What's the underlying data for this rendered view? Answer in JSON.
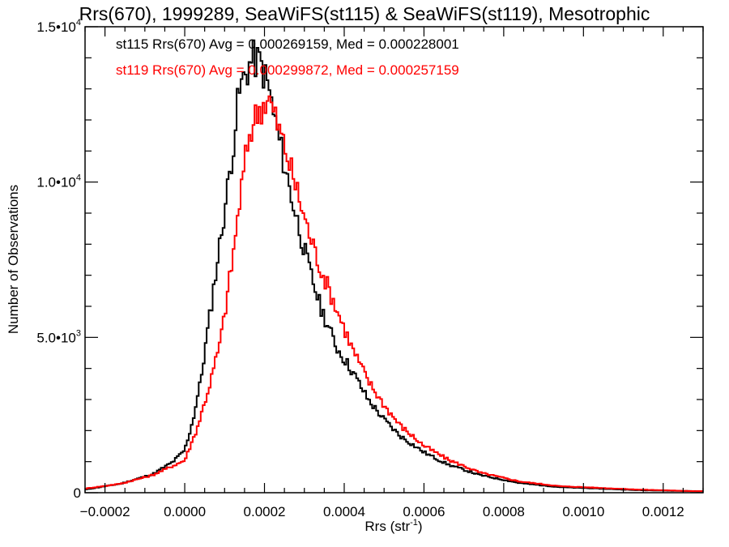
{
  "chart_data": {
    "type": "histogram",
    "title": "Rrs(670), 1999289, SeaWiFS(st115) & SeaWiFS(st119), Mesotrophic",
    "xlabel": "Rrs (str",
    "xlabel_superscript": "-1",
    "xlabel_suffix": ")",
    "ylabel": "Number of Observations",
    "xlim": [
      -0.00025,
      0.0013
    ],
    "ylim": [
      0,
      15000
    ],
    "grid": false,
    "x_ticks": [
      {
        "value": -0.0002,
        "label": "−0.0002"
      },
      {
        "value": 0.0,
        "label": "0.0000"
      },
      {
        "value": 0.0002,
        "label": "0.0002"
      },
      {
        "value": 0.0004,
        "label": "0.0004"
      },
      {
        "value": 0.0006,
        "label": "0.0006"
      },
      {
        "value": 0.0008,
        "label": "0.0008"
      },
      {
        "value": 0.001,
        "label": "0.0010"
      },
      {
        "value": 0.0012,
        "label": "0.0012"
      }
    ],
    "x_minor_step": 5e-05,
    "y_ticks": [
      {
        "value": 0,
        "label": "0",
        "exp": ""
      },
      {
        "value": 5000,
        "label": "5.0•10",
        "exp": "3"
      },
      {
        "value": 10000,
        "label": "1.0•10",
        "exp": "4"
      },
      {
        "value": 15000,
        "label": "1.5•10",
        "exp": "4"
      }
    ],
    "y_minor_step": 1000,
    "bin_width": 1e-05,
    "series": [
      {
        "name": "st115",
        "color": "#000000",
        "stats_label": "st115 Rrs(670) Avg = 0.000269159, Med = 0.000228001",
        "avg": 0.000269159,
        "median": 0.000228001,
        "points": [
          [
            -0.00025,
            100
          ],
          [
            -0.00016,
            290
          ],
          [
            -8e-05,
            600
          ],
          [
            -3e-05,
            990
          ],
          [
            0.0,
            1370
          ],
          [
            2e-05,
            2300
          ],
          [
            4e-05,
            3600
          ],
          [
            6e-05,
            5430
          ],
          [
            8e-05,
            7270
          ],
          [
            0.0001,
            9100
          ],
          [
            0.00012,
            10960
          ],
          [
            0.000135,
            12780
          ],
          [
            0.00015,
            13430
          ],
          [
            0.00017,
            13960
          ],
          [
            0.00019,
            13830
          ],
          [
            0.00021,
            13050
          ],
          [
            0.00023,
            11740
          ],
          [
            0.00025,
            10570
          ],
          [
            0.00027,
            9390
          ],
          [
            0.00029,
            8350
          ],
          [
            0.00031,
            7300
          ],
          [
            0.00034,
            6000
          ],
          [
            0.00038,
            4700
          ],
          [
            0.00042,
            3910
          ],
          [
            0.00046,
            3000
          ],
          [
            0.0005,
            2350
          ],
          [
            0.00054,
            1830
          ],
          [
            0.0006,
            1300
          ],
          [
            0.00066,
            910
          ],
          [
            0.00074,
            570
          ],
          [
            0.00084,
            310
          ],
          [
            0.00094,
            180
          ],
          [
            0.00114,
            80
          ],
          [
            0.00128,
            50
          ]
        ]
      },
      {
        "name": "st119",
        "color": "#ff0000",
        "stats_label": "st119 Rrs(670) Avg = 0.000299872, Med = 0.000257159",
        "avg": 0.000299872,
        "median": 0.000257159,
        "points": [
          [
            -0.00025,
            130
          ],
          [
            -0.00016,
            290
          ],
          [
            -8e-05,
            570
          ],
          [
            0.0,
            1040
          ],
          [
            3e-05,
            2030
          ],
          [
            6e-05,
            3340
          ],
          [
            9e-05,
            4900
          ],
          [
            0.00012,
            7510
          ],
          [
            0.00014,
            9600
          ],
          [
            0.00016,
            11430
          ],
          [
            0.00018,
            12210
          ],
          [
            0.00021,
            12730
          ],
          [
            0.00023,
            11950
          ],
          [
            0.00025,
            11170
          ],
          [
            0.00027,
            10250
          ],
          [
            0.00029,
            9340
          ],
          [
            0.00031,
            8430
          ],
          [
            0.00034,
            7250
          ],
          [
            0.00038,
            5950
          ],
          [
            0.00042,
            4650
          ],
          [
            0.00046,
            3600
          ],
          [
            0.0005,
            2820
          ],
          [
            0.00054,
            2170
          ],
          [
            0.0006,
            1510
          ],
          [
            0.00066,
            1070
          ],
          [
            0.00074,
            650
          ],
          [
            0.00084,
            360
          ],
          [
            0.00094,
            210
          ],
          [
            0.00114,
            100
          ],
          [
            0.00128,
            50
          ]
        ]
      }
    ]
  }
}
